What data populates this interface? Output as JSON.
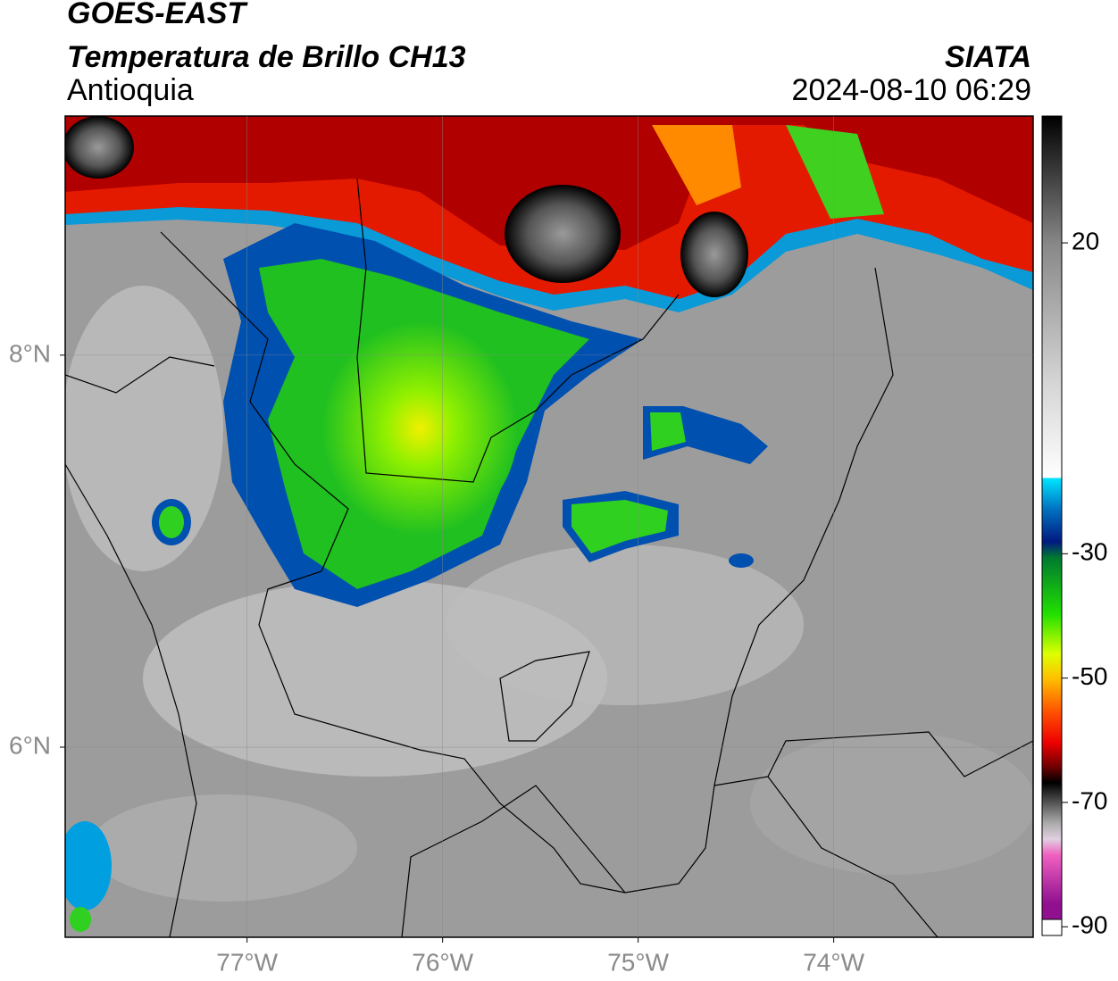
{
  "chart_data": {
    "type": "map",
    "title": "GOES-EAST",
    "subtitle": "Temperatura de Brillo CH13",
    "region": "Antioquia",
    "source": "SIATA",
    "datetime": "2024-08-10 06:29",
    "xlim": [
      -77.93,
      -72.98
    ],
    "ylim": [
      5.03,
      9.22
    ],
    "xticks": [
      {
        "value": -77,
        "label": "77°W"
      },
      {
        "value": -76,
        "label": "76°W"
      },
      {
        "value": -75,
        "label": "75°W"
      },
      {
        "value": -74,
        "label": "74°W"
      }
    ],
    "yticks": [
      {
        "value": 6,
        "label": "6°N"
      },
      {
        "value": 8,
        "label": "8°N"
      }
    ],
    "grid": true,
    "colorbar": {
      "lim": [
        -91.4,
        40.4
      ],
      "ticks": [
        20,
        -30,
        -50,
        -70,
        -90
      ]
    }
  }
}
